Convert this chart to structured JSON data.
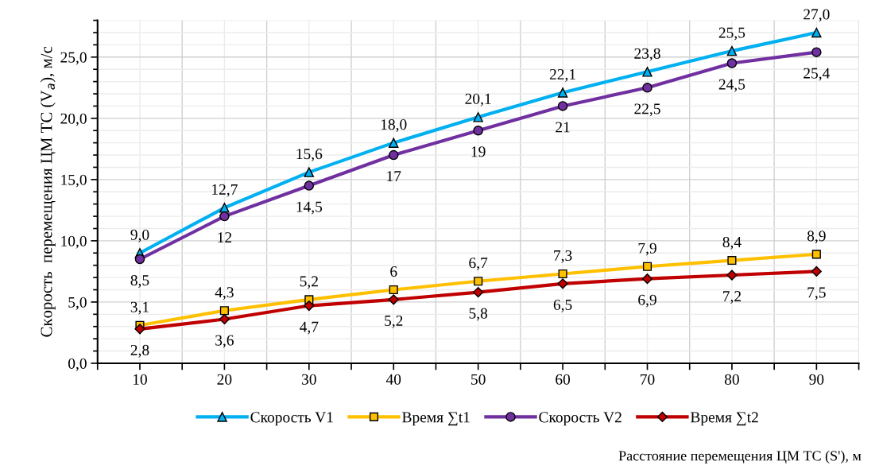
{
  "chart_data": {
    "type": "line",
    "xlabel": "Расстояние перемещения ЦМ ТС (S'), м",
    "ylabel": "Скорость  перемещения ЦМ ТС (V$_{a}$), м/с",
    "categories": [
      "10",
      "20",
      "30",
      "40",
      "50",
      "60",
      "70",
      "80",
      "90"
    ],
    "ylim": [
      0,
      28
    ],
    "yticks": [
      {
        "value": 0,
        "label": "0,0"
      },
      {
        "value": 5,
        "label": "5,0"
      },
      {
        "value": 10,
        "label": "10,0"
      },
      {
        "value": 15,
        "label": "15,0"
      },
      {
        "value": 20,
        "label": "20,0"
      },
      {
        "value": 25,
        "label": "25,0"
      }
    ],
    "grid": true,
    "legend": "bottom",
    "line_style": "solid",
    "series": [
      {
        "name": "Скорость V1",
        "color": "#00b0f0",
        "marker": "triangle",
        "values": [
          9.0,
          12.7,
          15.6,
          18.0,
          20.1,
          22.1,
          23.8,
          25.5,
          27.0
        ],
        "value_labels": [
          "9,0",
          "12,7",
          "15,6",
          "18,0",
          "20,1",
          "22,1",
          "23,8",
          "25,5",
          "27,0"
        ]
      },
      {
        "name": "Время ∑t1",
        "color": "#ffc000",
        "marker": "square",
        "values": [
          3.1,
          4.3,
          5.2,
          6,
          6.7,
          7.3,
          7.9,
          8.4,
          8.9
        ],
        "value_labels": [
          "3,1",
          "4,3",
          "5,2",
          "6",
          "6,7",
          "7,3",
          "7,9",
          "8,4",
          "8,9"
        ]
      },
      {
        "name": "Скорость V2",
        "color": "#7030a0",
        "marker": "circle",
        "values": [
          8.5,
          12,
          14.5,
          17,
          19,
          21,
          22.5,
          24.5,
          25.4
        ],
        "value_labels": [
          "8,5",
          "12",
          "14,5",
          "17",
          "19",
          "21",
          "22,5",
          "24,5",
          "25,4"
        ]
      },
      {
        "name": "Время ∑t2",
        "color": "#c00000",
        "marker": "diamond",
        "values": [
          2.8,
          3.6,
          4.7,
          5.2,
          5.8,
          6.5,
          6.9,
          7.2,
          7.5
        ],
        "value_labels": [
          "2,8",
          "3,6",
          "4,7",
          "5,2",
          "5,8",
          "6,5",
          "6,9",
          "7,2",
          "7,5"
        ]
      }
    ]
  }
}
